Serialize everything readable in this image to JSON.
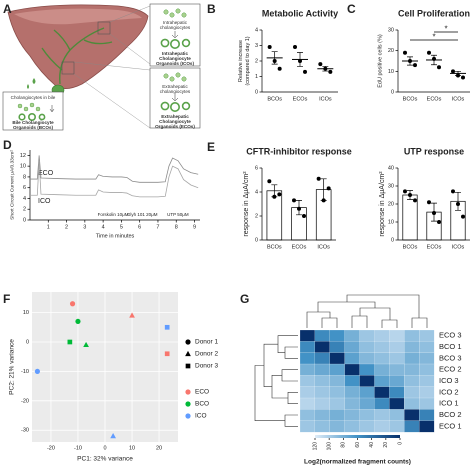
{
  "diagram": {
    "panel": "A",
    "bile_cells": "Cholangiocytes in bile",
    "bco": "Bile Cholangiocyte Organoids (BCOs)",
    "intra_cells": "Intrahepatic cholangiocytes",
    "ico": "Intrahepatic Cholangiocyte Organoids (ICOs)",
    "extra_cells": "Extrahepatic cholangiocytes",
    "eco": "Extrahepatic Cholangiocyte Organoids (ECOs)"
  },
  "chart_data": [
    {
      "type": "dotplot",
      "panel": "B",
      "title": "Metabolic Activity",
      "ylabel": [
        "Relative increase",
        "(compared to day 1)"
      ],
      "categories": [
        "BCOs",
        "ECOs",
        "ICOs"
      ],
      "values": [
        2.2,
        2.1,
        1.5
      ],
      "errors": [
        0.4,
        0.45,
        0.15
      ],
      "points": [
        [
          2.9,
          2.0,
          1.5
        ],
        [
          2.9,
          2.0,
          1.3
        ],
        [
          1.8,
          1.5,
          1.3
        ]
      ],
      "color": "#000000",
      "ylim": [
        0,
        4
      ],
      "yticks": [
        0,
        1,
        2,
        3,
        4
      ]
    },
    {
      "type": "dotplot",
      "panel": "C",
      "title": "Cell Proliferation",
      "ylabel": [
        "EdU positive cells (%)"
      ],
      "categories": [
        "BCOs",
        "ECOs",
        "ICOs"
      ],
      "values": [
        15,
        15.5,
        9
      ],
      "errors": [
        2,
        2.3,
        1
      ],
      "points": [
        [
          19,
          15,
          13
        ],
        [
          19,
          16,
          12
        ],
        [
          10,
          8,
          7
        ]
      ],
      "color": "#000000",
      "ylim": [
        0,
        30
      ],
      "yticks": [
        0,
        10,
        20,
        30
      ],
      "significance": [
        {
          "from": 0,
          "to": 2,
          "label": "*"
        },
        {
          "from": 1,
          "to": 2,
          "label": "*"
        }
      ]
    },
    {
      "type": "line",
      "panel": "D",
      "ylabel": [
        "Short Circuit Current μA/0.33cm²"
      ],
      "xlabel": "Time in minutes",
      "x": [
        0,
        0.4,
        0.5,
        0.6,
        1.5,
        2.5,
        3.6,
        3.75,
        4,
        4.5,
        5,
        5.3,
        5.6,
        6,
        6.5,
        7,
        7.4,
        7.6,
        7.8,
        8.1,
        8.4,
        8.8,
        9.2
      ],
      "series": [
        {
          "name": "ECO",
          "color": "#8c8c8c",
          "values": [
            7.6,
            7.6,
            12,
            7.8,
            7.7,
            7.6,
            7.6,
            8.4,
            8.1,
            8,
            8,
            7.9,
            7.2,
            7,
            7,
            7,
            7.1,
            10,
            11.5,
            11,
            9.5,
            8.8,
            8.5
          ]
        },
        {
          "name": "ICO",
          "color": "#a6a6a6",
          "values": [
            4.6,
            4.6,
            11,
            4.8,
            4.7,
            4.6,
            4.6,
            5.6,
            5.2,
            5.1,
            5.1,
            5,
            4.5,
            4.3,
            4.3,
            4.3,
            4.4,
            8,
            10,
            9.5,
            7.5,
            6.5,
            6
          ]
        }
      ],
      "annotations": [
        {
          "text": "Forskolin 10μM",
          "x": 3.7
        },
        {
          "text": "Glyh 101 20μM",
          "x": 5.3
        },
        {
          "text": "UTP 50μM",
          "x": 7.5
        }
      ],
      "xlim": [
        0,
        9.3
      ],
      "xticks": [
        1,
        2,
        3,
        4,
        5,
        6,
        7,
        8,
        9
      ],
      "ylim": [
        0,
        13
      ],
      "yticks": [
        0,
        2,
        4,
        6,
        8,
        10,
        12
      ]
    },
    {
      "type": "bar",
      "panel": "E",
      "title": "CFTR-inhibitor response",
      "ylabel": [
        "response in ΔμA/cm²"
      ],
      "categories": [
        "BCOs",
        "ECOs",
        "ICOs"
      ],
      "values": [
        4.1,
        2.7,
        4.2
      ],
      "errors": [
        0.5,
        0.6,
        0.9
      ],
      "points": [
        [
          4.9,
          3.6,
          3.8
        ],
        [
          3.3,
          2.6,
          2.0
        ],
        [
          5.1,
          3.3,
          4.3
        ]
      ],
      "color": "#ffffff",
      "ylim": [
        0,
        6
      ],
      "yticks": [
        0,
        2,
        4,
        6
      ]
    },
    {
      "type": "bar",
      "title": "UTP response",
      "ylabel": [
        "response in ΔμA/cm²"
      ],
      "categories": [
        "BCOs",
        "ECOs",
        "ICOs"
      ],
      "values": [
        25,
        15.5,
        21.5
      ],
      "errors": [
        2.5,
        5,
        5
      ],
      "points": [
        [
          27,
          25,
          22
        ],
        [
          21,
          15,
          10
        ],
        [
          27,
          20,
          13
        ]
      ],
      "color": "#ffffff",
      "ylim": [
        0,
        40
      ],
      "yticks": [
        0,
        10,
        20,
        30,
        40
      ]
    },
    {
      "type": "scatter",
      "panel": "F",
      "xlabel": "PC1: 32% variance",
      "ylabel": [
        "PC2: 21% variance"
      ],
      "shape_legend": [
        "Donor 1",
        "Donor 2",
        "Donor 3"
      ],
      "series": [
        {
          "name": "ECO",
          "color": "#f8766d",
          "x": [
            -12,
            10,
            23
          ],
          "values": [
            13,
            9,
            -4
          ],
          "donor": [
            0,
            1,
            2
          ]
        },
        {
          "name": "BCO",
          "color": "#00ba38",
          "x": [
            -10,
            -7,
            -13
          ],
          "values": [
            7,
            -1,
            0
          ],
          "donor": [
            0,
            1,
            2
          ]
        },
        {
          "name": "ICO",
          "color": "#619cff",
          "x": [
            -25,
            3,
            23
          ],
          "values": [
            -10,
            -32,
            5
          ],
          "donor": [
            0,
            1,
            2
          ]
        }
      ],
      "xlim": [
        -27,
        27
      ],
      "xticks": [
        -20,
        -10,
        0,
        10,
        20
      ],
      "ylim": [
        -34,
        17
      ],
      "yticks": [
        -30,
        -20,
        -10,
        0,
        10
      ],
      "grid": true
    },
    {
      "type": "heatmap",
      "panel": "G",
      "rows": [
        "ECO 3",
        "BCO 1",
        "BCO 3",
        "ECO 2",
        "ICO 3",
        "ICO 2",
        "ICO 1",
        "BCO 2",
        "ECO 1"
      ],
      "matrix": [
        [
          0,
          55,
          60,
          80,
          95,
          100,
          105,
          90,
          95
        ],
        [
          55,
          0,
          50,
          75,
          90,
          95,
          100,
          85,
          90
        ],
        [
          60,
          50,
          0,
          70,
          85,
          90,
          95,
          80,
          85
        ],
        [
          80,
          75,
          70,
          0,
          60,
          80,
          85,
          85,
          90
        ],
        [
          95,
          90,
          85,
          60,
          0,
          70,
          75,
          90,
          95
        ],
        [
          100,
          95,
          90,
          80,
          70,
          0,
          55,
          95,
          100
        ],
        [
          105,
          100,
          95,
          85,
          75,
          55,
          0,
          90,
          95
        ],
        [
          90,
          85,
          80,
          85,
          90,
          95,
          90,
          0,
          50
        ],
        [
          95,
          90,
          85,
          90,
          95,
          100,
          95,
          50,
          0
        ]
      ],
      "clim": [
        0,
        120
      ],
      "cticks": [
        120,
        100,
        80,
        60,
        40,
        20,
        0
      ],
      "colors": [
        "#08306b",
        "#4292c6",
        "#deebf7"
      ],
      "clabel": "Log2(normalized fragment counts)"
    }
  ]
}
